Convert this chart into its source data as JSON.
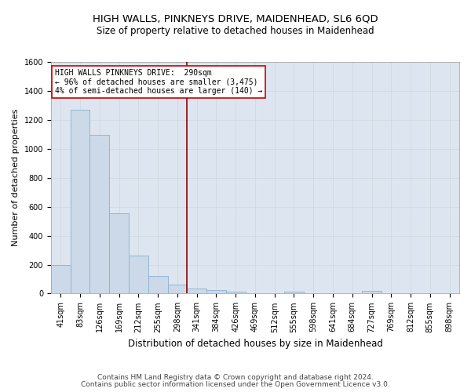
{
  "title": "HIGH WALLS, PINKNEYS DRIVE, MAIDENHEAD, SL6 6QD",
  "subtitle": "Size of property relative to detached houses in Maidenhead",
  "xlabel": "Distribution of detached houses by size in Maidenhead",
  "ylabel": "Number of detached properties",
  "footer1": "Contains HM Land Registry data © Crown copyright and database right 2024.",
  "footer2": "Contains public sector information licensed under the Open Government Licence v3.0.",
  "categories": [
    "41sqm",
    "83sqm",
    "126sqm",
    "169sqm",
    "212sqm",
    "255sqm",
    "298sqm",
    "341sqm",
    "384sqm",
    "426sqm",
    "469sqm",
    "512sqm",
    "555sqm",
    "598sqm",
    "641sqm",
    "684sqm",
    "727sqm",
    "769sqm",
    "812sqm",
    "855sqm",
    "898sqm"
  ],
  "values": [
    200,
    1270,
    1095,
    555,
    265,
    120,
    60,
    35,
    25,
    15,
    0,
    0,
    15,
    0,
    0,
    0,
    20,
    0,
    0,
    0,
    0
  ],
  "ylim": [
    0,
    1600
  ],
  "yticks": [
    0,
    200,
    400,
    600,
    800,
    1000,
    1200,
    1400,
    1600
  ],
  "bar_color": "#ccd9e8",
  "bar_edge_color": "#8ab0cc",
  "grid_color": "#d0d8e0",
  "bg_color": "#dde6f0",
  "fig_bg_color": "#ffffff",
  "vline_x_index": 6,
  "vline_color": "#8b0000",
  "annotation_line1": "HIGH WALLS PINKNEYS DRIVE:  290sqm",
  "annotation_line2": "← 96% of detached houses are smaller (3,475)",
  "annotation_line3": "4% of semi-detached houses are larger (140) →",
  "annotation_box_color": "#ffffff",
  "annotation_box_edge": "#cc0000",
  "title_fontsize": 9.5,
  "subtitle_fontsize": 8.5,
  "axis_label_fontsize": 8,
  "tick_fontsize": 7,
  "annotation_fontsize": 7,
  "footer_fontsize": 6.5
}
